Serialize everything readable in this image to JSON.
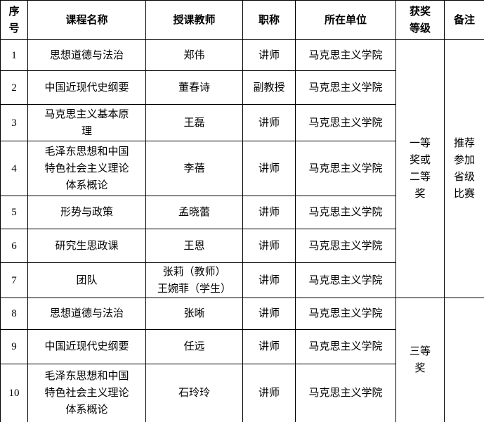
{
  "table": {
    "headers": {
      "no": "序\n号",
      "course": "课程名称",
      "teacher": "授课教师",
      "title": "职称",
      "unit": "所在单位",
      "award": "获奖\n等级",
      "remark": "备注"
    },
    "rows": [
      {
        "no": "1",
        "course": "思想道德与法治",
        "teacher": "郑伟",
        "title": "讲师",
        "unit": "马克思主义学院"
      },
      {
        "no": "2",
        "course": "中国近现代史纲要",
        "teacher": "董春诗",
        "title": "副教授",
        "unit": "马克思主义学院"
      },
      {
        "no": "3",
        "course": "马克思主义基本原\n理",
        "teacher": "王磊",
        "title": "讲师",
        "unit": "马克思主义学院"
      },
      {
        "no": "4",
        "course": "毛泽东思想和中国\n特色社会主义理论\n体系概论",
        "teacher": "李蓓",
        "title": "讲师",
        "unit": "马克思主义学院"
      },
      {
        "no": "5",
        "course": "形势与政策",
        "teacher": "孟晓蕾",
        "title": "讲师",
        "unit": "马克思主义学院"
      },
      {
        "no": "6",
        "course": "研究生思政课",
        "teacher": "王恩",
        "title": "讲师",
        "unit": "马克思主义学院"
      },
      {
        "no": "7",
        "course": "团队",
        "teacher": "张莉（教师）\n王婉菲（学生）",
        "title": "讲师",
        "unit": "马克思主义学院"
      },
      {
        "no": "8",
        "course": "思想道德与法治",
        "teacher": "张晰",
        "title": "讲师",
        "unit": "马克思主义学院"
      },
      {
        "no": "9",
        "course": "中国近现代史纲要",
        "teacher": "任远",
        "title": "讲师",
        "unit": "马克思主义学院"
      },
      {
        "no": "10",
        "course": "毛泽东思想和中国\n特色社会主义理论\n体系概论",
        "teacher": "石玲玲",
        "title": "讲师",
        "unit": "马克思主义学院"
      }
    ],
    "award_groups": [
      {
        "award": "一等\n奖或\n二等\n奖",
        "remark": "推荐\n参加\n省级\n比赛",
        "row_span": 7
      },
      {
        "award": "三等\n奖",
        "remark": "",
        "row_span": 3
      }
    ],
    "colors": {
      "border": "#000000",
      "text": "#000000",
      "background": "#ffffff"
    }
  }
}
